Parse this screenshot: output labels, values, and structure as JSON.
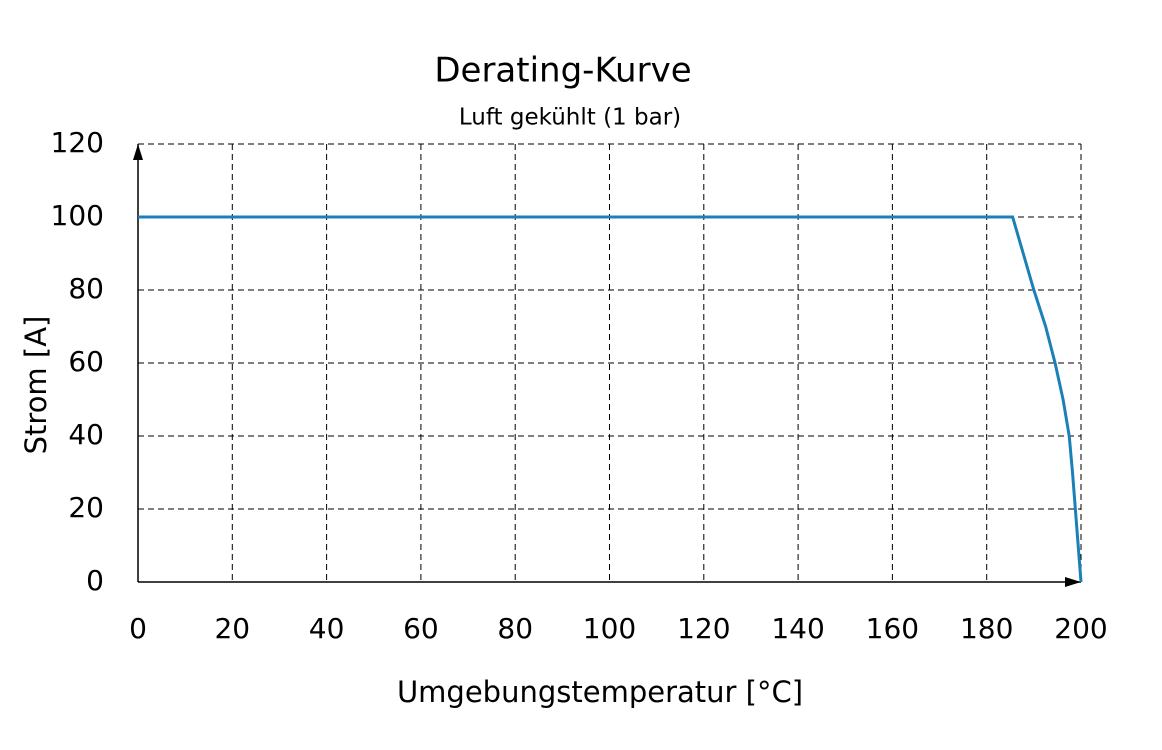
{
  "chart_data": {
    "type": "line",
    "title": "Derating-Kurve",
    "subtitle": "Luft gekühlt (1 bar)",
    "x_label": "Umgebungstemperatur [°C]",
    "y_label": "Strom [A]",
    "x": [
      0,
      185.5,
      190,
      192.5,
      194.5,
      196.2,
      197.5,
      198.2,
      200
    ],
    "series": [
      {
        "color": "#1b80b8",
        "values": [
          100,
          100,
          80,
          70,
          60,
          50,
          40,
          30,
          0
        ]
      }
    ],
    "xlim": [
      0,
      200
    ],
    "xticks": [
      0,
      20,
      40,
      60,
      80,
      100,
      120,
      140,
      160,
      180,
      200
    ],
    "ylim": [
      0,
      120
    ],
    "yticks": [
      0,
      20,
      40,
      60,
      80,
      100,
      120
    ],
    "grid": true
  }
}
